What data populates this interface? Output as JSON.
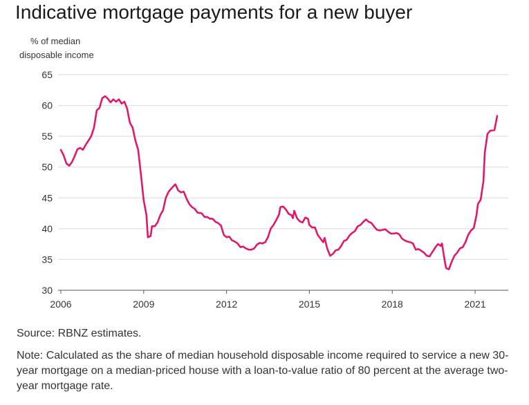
{
  "title": "Indicative mortgage payments for a new buyer",
  "y_axis_label_line1": "% of median",
  "y_axis_label_line2": "disposable income",
  "source": "Source: RBNZ estimates.",
  "note": "Note: Calculated as the share of median household disposable income required to service a new 30-year mortgage on a median-priced house with a loan-to-value ratio of 80 percent at the average two-year mortgage rate.",
  "colors": {
    "series": "#e2166a",
    "grid": "#d9d9d9",
    "axis": "#555555"
  },
  "chart_data": {
    "type": "line",
    "title": "Indicative mortgage payments for a new buyer",
    "ylabel": "% of median disposable income",
    "ylim": [
      30,
      65
    ],
    "yticks": [
      30,
      35,
      40,
      45,
      50,
      55,
      60,
      65
    ],
    "xlim": [
      2005.9,
      2022.2
    ],
    "xticks": [
      2006,
      2009,
      2012,
      2015,
      2018,
      2021
    ],
    "grid": true,
    "series": [
      {
        "color": "#e2166a",
        "points": [
          [
            2006.0,
            52.8
          ],
          [
            2006.1,
            51.9
          ],
          [
            2006.2,
            50.6
          ],
          [
            2006.3,
            50.2
          ],
          [
            2006.4,
            50.8
          ],
          [
            2006.5,
            51.8
          ],
          [
            2006.6,
            52.9
          ],
          [
            2006.7,
            53.1
          ],
          [
            2006.8,
            52.8
          ],
          [
            2006.9,
            53.6
          ],
          [
            2007.0,
            54.3
          ],
          [
            2007.1,
            55.0
          ],
          [
            2007.2,
            56.4
          ],
          [
            2007.3,
            59.2
          ],
          [
            2007.4,
            59.6
          ],
          [
            2007.5,
            61.2
          ],
          [
            2007.6,
            61.5
          ],
          [
            2007.7,
            61.1
          ],
          [
            2007.8,
            60.5
          ],
          [
            2007.9,
            61.0
          ],
          [
            2008.0,
            60.6
          ],
          [
            2008.1,
            61.0
          ],
          [
            2008.2,
            60.3
          ],
          [
            2008.3,
            60.6
          ],
          [
            2008.4,
            59.5
          ],
          [
            2008.5,
            57.2
          ],
          [
            2008.6,
            56.4
          ],
          [
            2008.7,
            54.3
          ],
          [
            2008.8,
            52.8
          ],
          [
            2008.9,
            48.8
          ],
          [
            2009.0,
            44.6
          ],
          [
            2009.1,
            42.2
          ],
          [
            2009.15,
            38.6
          ],
          [
            2009.25,
            38.8
          ],
          [
            2009.3,
            40.4
          ],
          [
            2009.4,
            40.4
          ],
          [
            2009.5,
            41.0
          ],
          [
            2009.6,
            42.2
          ],
          [
            2009.7,
            43.0
          ],
          [
            2009.8,
            45.0
          ],
          [
            2009.9,
            46.0
          ],
          [
            2010.0,
            46.5
          ],
          [
            2010.1,
            47.0
          ],
          [
            2010.15,
            47.2
          ],
          [
            2010.25,
            46.2
          ],
          [
            2010.35,
            45.9
          ],
          [
            2010.45,
            46.0
          ],
          [
            2010.55,
            44.9
          ],
          [
            2010.65,
            44.0
          ],
          [
            2010.75,
            43.5
          ],
          [
            2010.85,
            43.2
          ],
          [
            2010.95,
            42.6
          ],
          [
            2011.1,
            42.5
          ],
          [
            2011.2,
            41.9
          ],
          [
            2011.3,
            41.9
          ],
          [
            2011.4,
            41.6
          ],
          [
            2011.5,
            41.6
          ],
          [
            2011.6,
            41.1
          ],
          [
            2011.7,
            40.9
          ],
          [
            2011.8,
            40.5
          ],
          [
            2011.9,
            39.0
          ],
          [
            2012.0,
            38.6
          ],
          [
            2012.1,
            38.7
          ],
          [
            2012.2,
            38.1
          ],
          [
            2012.3,
            37.9
          ],
          [
            2012.4,
            37.6
          ],
          [
            2012.5,
            37.0
          ],
          [
            2012.6,
            37.1
          ],
          [
            2012.7,
            36.8
          ],
          [
            2012.8,
            36.6
          ],
          [
            2012.9,
            36.6
          ],
          [
            2013.0,
            36.8
          ],
          [
            2013.1,
            37.4
          ],
          [
            2013.2,
            37.7
          ],
          [
            2013.3,
            37.6
          ],
          [
            2013.4,
            37.8
          ],
          [
            2013.5,
            38.6
          ],
          [
            2013.6,
            40.0
          ],
          [
            2013.7,
            40.6
          ],
          [
            2013.8,
            41.4
          ],
          [
            2013.9,
            42.3
          ],
          [
            2013.95,
            43.5
          ],
          [
            2014.05,
            43.6
          ],
          [
            2014.15,
            43.1
          ],
          [
            2014.25,
            42.4
          ],
          [
            2014.35,
            42.2
          ],
          [
            2014.4,
            41.7
          ],
          [
            2014.45,
            42.9
          ],
          [
            2014.55,
            41.7
          ],
          [
            2014.65,
            41.2
          ],
          [
            2014.75,
            41.0
          ],
          [
            2014.85,
            41.8
          ],
          [
            2014.95,
            41.6
          ],
          [
            2015.0,
            40.6
          ],
          [
            2015.1,
            40.2
          ],
          [
            2015.2,
            40.2
          ],
          [
            2015.3,
            39.0
          ],
          [
            2015.4,
            38.4
          ],
          [
            2015.5,
            37.8
          ],
          [
            2015.55,
            38.5
          ],
          [
            2015.65,
            36.7
          ],
          [
            2015.75,
            35.6
          ],
          [
            2015.85,
            35.9
          ],
          [
            2015.95,
            36.5
          ],
          [
            2016.05,
            36.6
          ],
          [
            2016.15,
            37.2
          ],
          [
            2016.25,
            38.0
          ],
          [
            2016.35,
            38.2
          ],
          [
            2016.45,
            38.9
          ],
          [
            2016.55,
            39.3
          ],
          [
            2016.65,
            39.6
          ],
          [
            2016.75,
            40.4
          ],
          [
            2016.85,
            40.6
          ],
          [
            2016.95,
            41.1
          ],
          [
            2017.05,
            41.5
          ],
          [
            2017.15,
            41.1
          ],
          [
            2017.25,
            40.9
          ],
          [
            2017.35,
            40.3
          ],
          [
            2017.45,
            39.8
          ],
          [
            2017.55,
            39.7
          ],
          [
            2017.65,
            39.8
          ],
          [
            2017.75,
            39.9
          ],
          [
            2017.85,
            39.5
          ],
          [
            2017.95,
            39.2
          ],
          [
            2018.05,
            39.2
          ],
          [
            2018.15,
            39.3
          ],
          [
            2018.25,
            39.1
          ],
          [
            2018.35,
            38.4
          ],
          [
            2018.45,
            38.1
          ],
          [
            2018.55,
            37.9
          ],
          [
            2018.65,
            37.8
          ],
          [
            2018.75,
            37.6
          ],
          [
            2018.85,
            36.6
          ],
          [
            2018.95,
            36.7
          ],
          [
            2019.05,
            36.4
          ],
          [
            2019.15,
            36.1
          ],
          [
            2019.25,
            35.6
          ],
          [
            2019.35,
            35.5
          ],
          [
            2019.45,
            36.2
          ],
          [
            2019.55,
            36.9
          ],
          [
            2019.65,
            37.5
          ],
          [
            2019.75,
            37.2
          ],
          [
            2019.8,
            37.6
          ],
          [
            2019.9,
            34.8
          ],
          [
            2019.95,
            33.6
          ],
          [
            2020.05,
            33.4
          ],
          [
            2020.15,
            34.6
          ],
          [
            2020.25,
            35.6
          ],
          [
            2020.35,
            36.1
          ],
          [
            2020.45,
            36.8
          ],
          [
            2020.55,
            37.0
          ],
          [
            2020.65,
            37.8
          ],
          [
            2020.75,
            39.0
          ],
          [
            2020.85,
            39.7
          ],
          [
            2020.95,
            40.1
          ],
          [
            2021.05,
            42.2
          ],
          [
            2021.1,
            44.0
          ],
          [
            2021.2,
            44.7
          ],
          [
            2021.3,
            47.7
          ],
          [
            2021.35,
            52.4
          ],
          [
            2021.45,
            55.4
          ],
          [
            2021.55,
            55.9
          ],
          [
            2021.7,
            56.0
          ],
          [
            2021.8,
            58.3
          ]
        ]
      }
    ]
  }
}
